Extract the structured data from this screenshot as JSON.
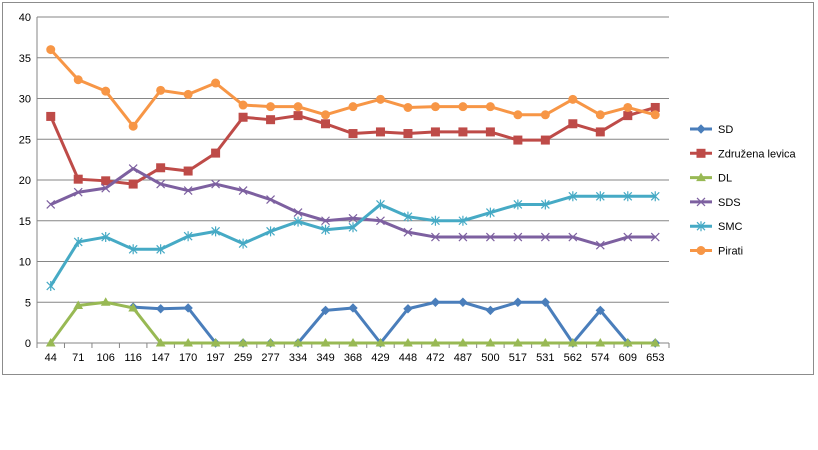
{
  "chart_data": {
    "type": "line",
    "title": "",
    "xlabel": "",
    "ylabel": "",
    "ylim": [
      0,
      40
    ],
    "y_ticks": [
      0,
      5,
      10,
      15,
      20,
      25,
      30,
      35,
      40
    ],
    "grid": "horizontal",
    "legend_position": "right",
    "categories": [
      "44",
      "71",
      "106",
      "116",
      "147",
      "170",
      "197",
      "259",
      "277",
      "334",
      "349",
      "368",
      "429",
      "448",
      "472",
      "487",
      "500",
      "517",
      "531",
      "562",
      "574",
      "609",
      "653"
    ],
    "series": [
      {
        "name": "SD",
        "color": "#4a7ebb",
        "marker": "diamond",
        "values": [
          null,
          null,
          null,
          4.4,
          4.2,
          4.3,
          0,
          0,
          0,
          0,
          4,
          4.3,
          0,
          4.2,
          5,
          5,
          4,
          5,
          5,
          0,
          4,
          0,
          0
        ]
      },
      {
        "name": "Združena levica",
        "color": "#be4b48",
        "marker": "square",
        "values": [
          27.8,
          20.1,
          19.9,
          19.5,
          21.5,
          21.1,
          23.3,
          27.7,
          27.4,
          27.9,
          26.9,
          25.7,
          25.9,
          25.7,
          25.9,
          25.9,
          25.9,
          24.9,
          24.9,
          26.9,
          25.9,
          27.9,
          28.9
        ]
      },
      {
        "name": "DL",
        "color": "#98b954",
        "marker": "triangle",
        "values": [
          0,
          4.6,
          5,
          4.3,
          0,
          0,
          0,
          0,
          0,
          0,
          0,
          0,
          0,
          0,
          0,
          0,
          0,
          0,
          0,
          0,
          0,
          0,
          0
        ]
      },
      {
        "name": "SDS",
        "color": "#7d60a0",
        "marker": "x",
        "values": [
          17,
          18.5,
          19,
          21.4,
          19.5,
          18.7,
          19.5,
          18.7,
          17.6,
          16,
          15,
          15.3,
          15,
          13.6,
          13,
          13,
          13,
          13,
          13,
          13,
          12,
          13,
          13
        ]
      },
      {
        "name": "SMC",
        "color": "#46aac5",
        "marker": "star",
        "values": [
          7,
          12.4,
          13,
          11.5,
          11.5,
          13.1,
          13.7,
          12.2,
          13.7,
          14.9,
          13.9,
          14.2,
          17,
          15.5,
          15,
          15,
          16,
          17,
          17,
          18,
          18,
          18,
          18
        ]
      },
      {
        "name": "Pirati",
        "color": "#f79646",
        "marker": "circle",
        "values": [
          36,
          32.3,
          30.9,
          26.6,
          31,
          30.5,
          31.9,
          29.2,
          29,
          29,
          28,
          29,
          29.9,
          28.9,
          29,
          29,
          29,
          28,
          28,
          29.9,
          28,
          28.9,
          28
        ]
      }
    ]
  }
}
